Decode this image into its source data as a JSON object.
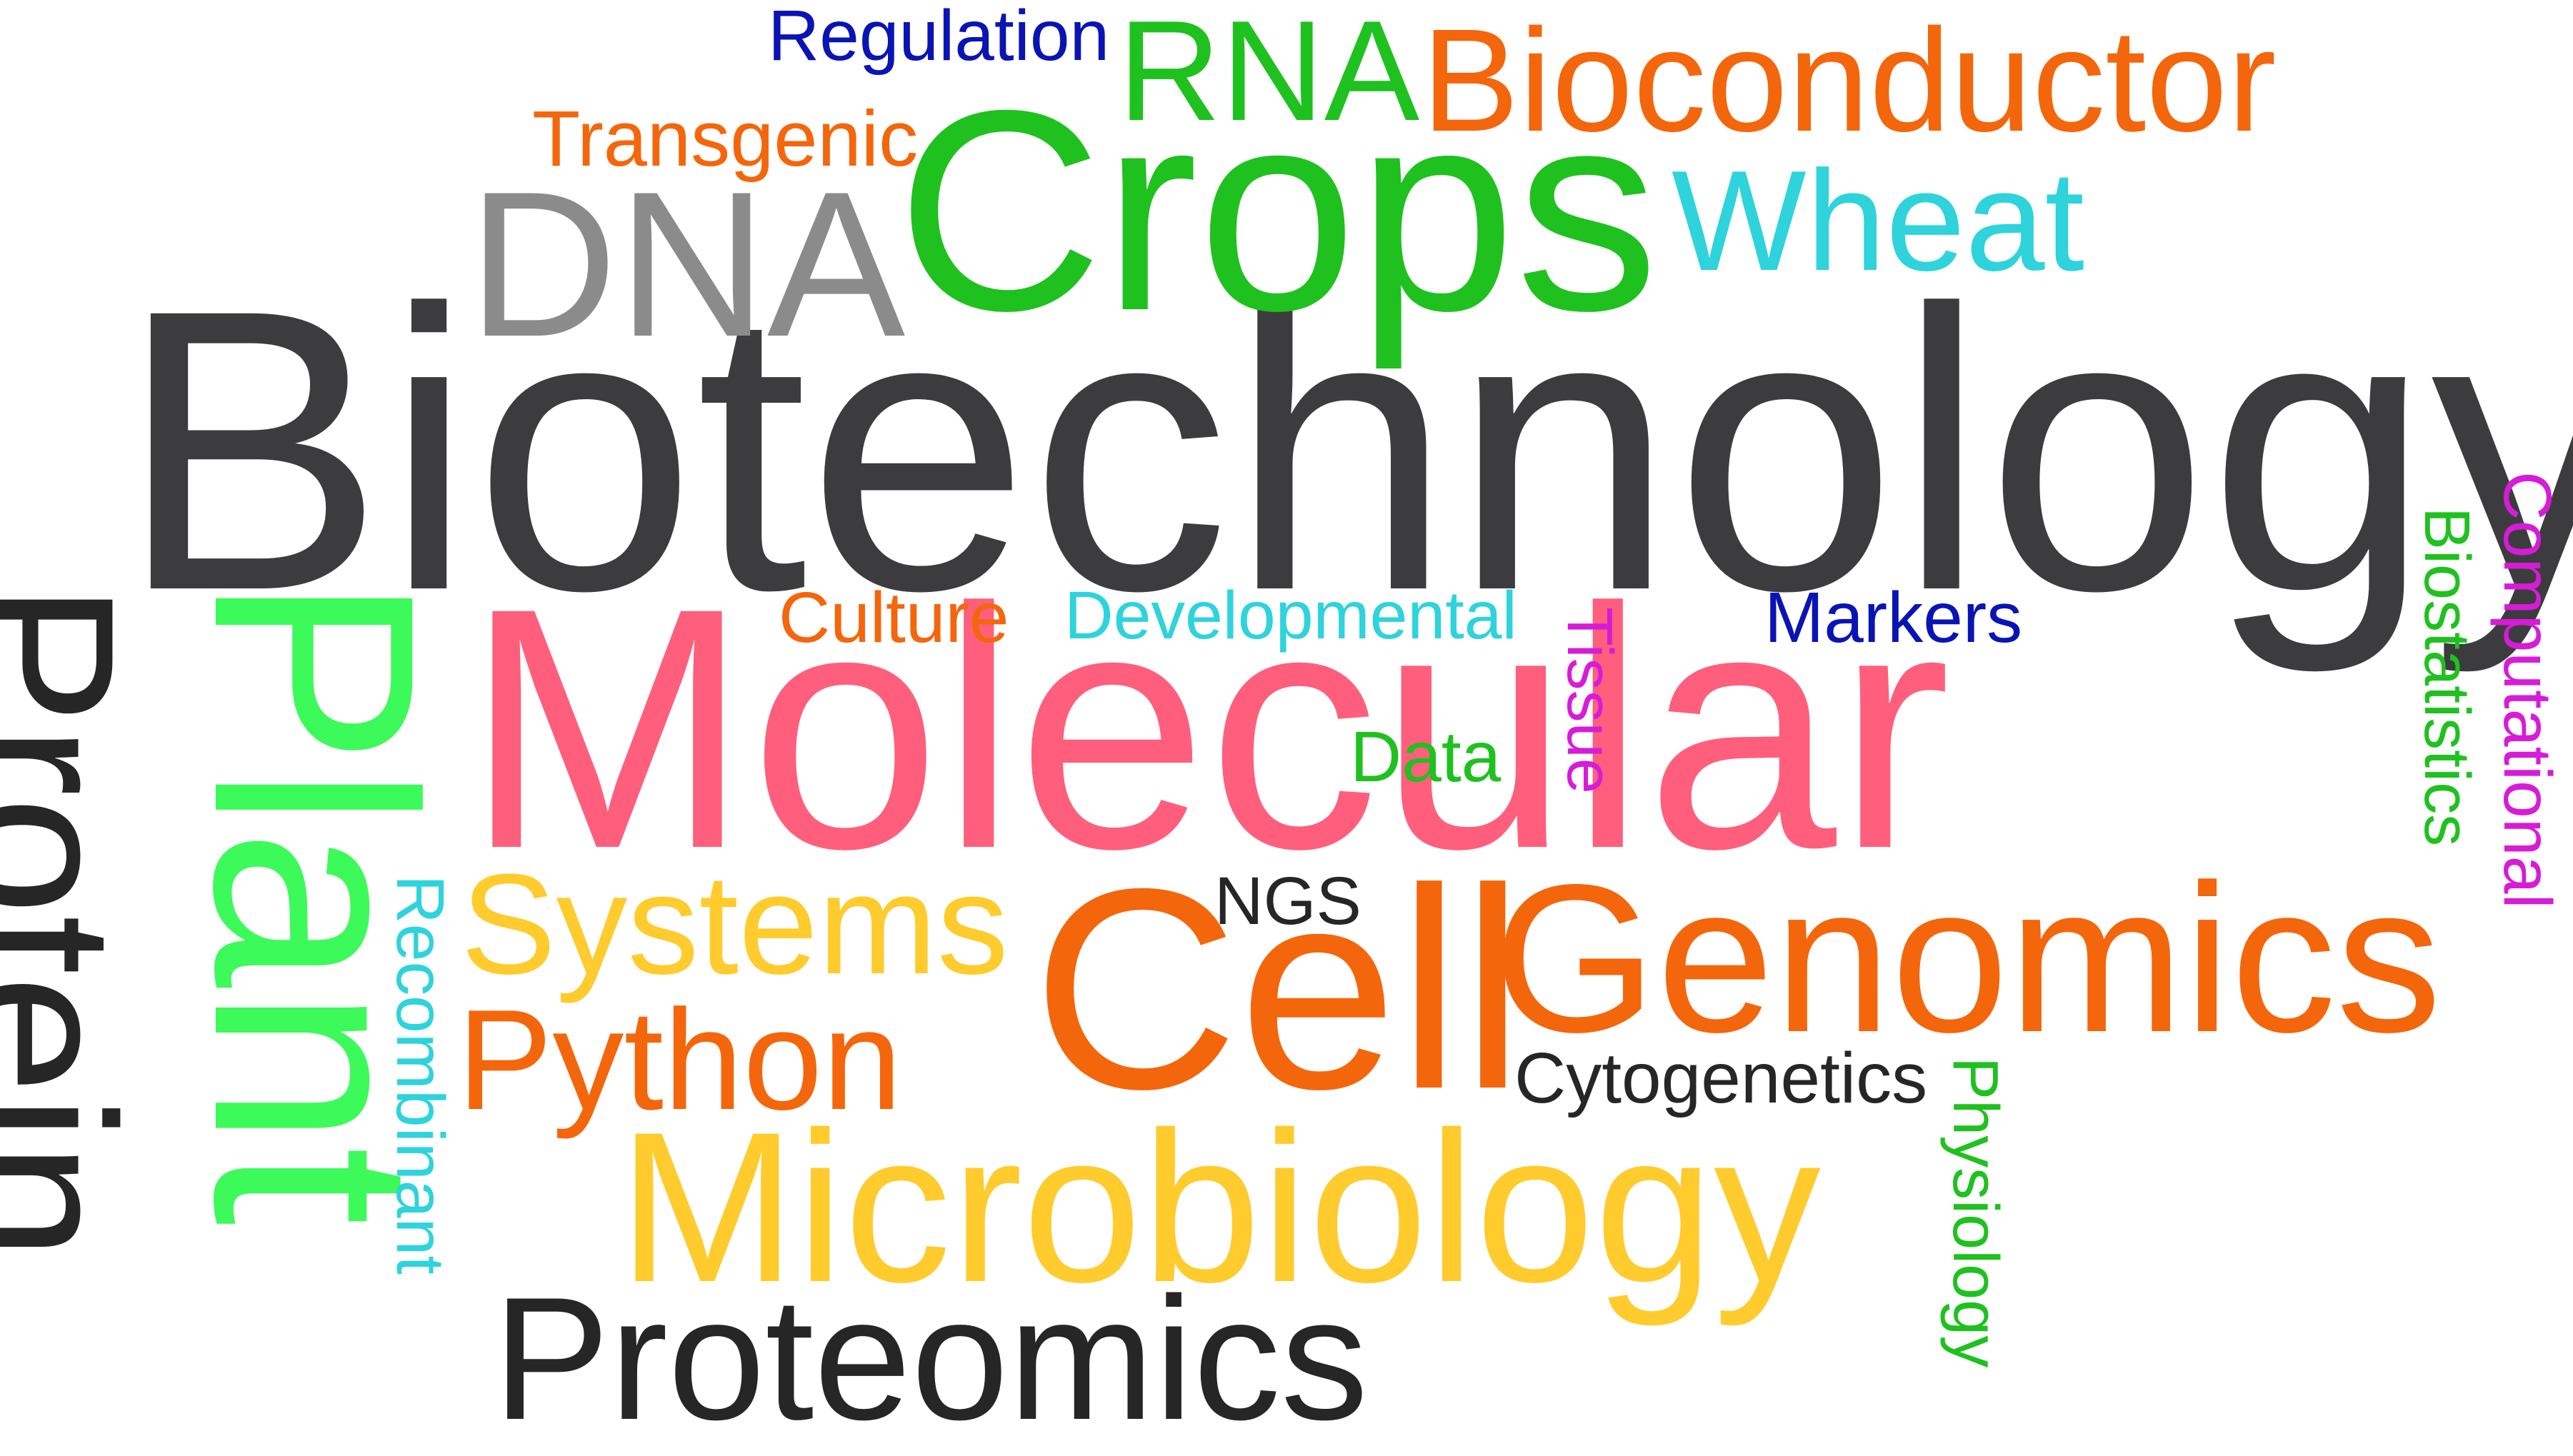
{
  "words": {
    "biotechnology": {
      "text": "Biotechnology",
      "color": "#3c3c3e"
    },
    "molecular": {
      "text": "Molecular",
      "color": "#ff5f7c"
    },
    "crops": {
      "text": "Crops",
      "color": "#1fc11f"
    },
    "cell": {
      "text": "Cell",
      "color": "#f4660b"
    },
    "genomics": {
      "text": "Genomics",
      "color": "#f4660b"
    },
    "microbiology": {
      "text": "Microbiology",
      "color": "#ffcb2d"
    },
    "proteomics": {
      "text": "Proteomics",
      "color": "#262626"
    },
    "dna": {
      "text": "DNA",
      "color": "#8b8b8b"
    },
    "bioconductor": {
      "text": "Bioconductor",
      "color": "#f4660b"
    },
    "rna": {
      "text": "RNA",
      "color": "#1fc11f"
    },
    "wheat": {
      "text": "Wheat",
      "color": "#2ed3dc"
    },
    "systems": {
      "text": "Systems",
      "color": "#ffcb2d"
    },
    "python": {
      "text": "Python",
      "color": "#f4660b"
    },
    "transgenic": {
      "text": "Transgenic",
      "color": "#f4660b"
    },
    "regulation": {
      "text": "Regulation",
      "color": "#0a14b4"
    },
    "culture": {
      "text": "Culture",
      "color": "#f4660b"
    },
    "developmental": {
      "text": "Developmental",
      "color": "#2ed3dc"
    },
    "markers": {
      "text": "Markers",
      "color": "#0a14b4"
    },
    "data": {
      "text": "Data",
      "color": "#1fc11f"
    },
    "ngs": {
      "text": "NGS",
      "color": "#262626"
    },
    "cytogenetics": {
      "text": "Cytogenetics",
      "color": "#262626"
    },
    "plant": {
      "text": "Plant",
      "color": "#3dfa5b"
    },
    "protein": {
      "text": "Protein",
      "color": "#262626"
    },
    "tissue": {
      "text": "Tissue",
      "color": "#d61cd6"
    },
    "recombinant": {
      "text": "Recombinant",
      "color": "#2ed3dc"
    },
    "physiology": {
      "text": "Physiology",
      "color": "#1fc11f"
    },
    "biostatistics": {
      "text": "Biostatistics",
      "color": "#1fc11f"
    },
    "computational": {
      "text": "Computational",
      "color": "#d61cd6"
    }
  }
}
